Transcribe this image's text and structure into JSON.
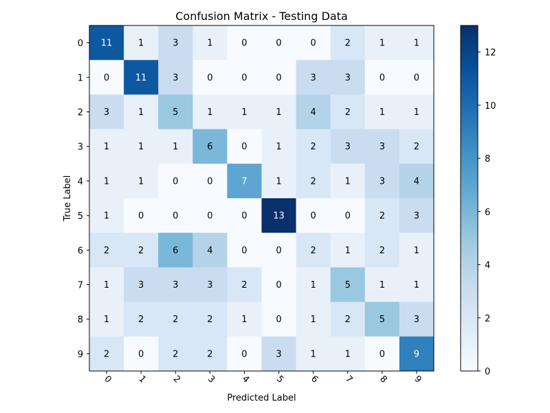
{
  "chart_data": {
    "type": "heatmap",
    "title": "Confusion Matrix - Testing Data",
    "xlabel": "Predicted Label",
    "ylabel": "True Label",
    "x_categories": [
      "0",
      "1",
      "2",
      "3",
      "4",
      "5",
      "6",
      "7",
      "8",
      "9"
    ],
    "y_categories": [
      "0",
      "1",
      "2",
      "3",
      "4",
      "5",
      "6",
      "7",
      "8",
      "9"
    ],
    "values": [
      [
        11,
        1,
        3,
        1,
        0,
        0,
        0,
        2,
        1,
        1
      ],
      [
        0,
        11,
        3,
        0,
        0,
        0,
        3,
        3,
        0,
        0
      ],
      [
        3,
        1,
        5,
        1,
        1,
        1,
        4,
        2,
        1,
        1
      ],
      [
        1,
        1,
        1,
        6,
        0,
        1,
        2,
        3,
        3,
        2
      ],
      [
        1,
        1,
        0,
        0,
        7,
        1,
        2,
        1,
        3,
        4
      ],
      [
        1,
        0,
        0,
        0,
        0,
        13,
        0,
        0,
        2,
        3
      ],
      [
        2,
        2,
        6,
        4,
        0,
        0,
        2,
        1,
        2,
        1
      ],
      [
        1,
        3,
        3,
        3,
        2,
        0,
        1,
        5,
        1,
        1
      ],
      [
        1,
        2,
        2,
        2,
        1,
        0,
        1,
        2,
        5,
        3
      ],
      [
        2,
        0,
        2,
        2,
        0,
        3,
        1,
        1,
        0,
        9
      ]
    ],
    "colormap": "Blues",
    "colorbar": {
      "range": [
        0,
        13
      ],
      "ticks": [
        "0",
        "2",
        "4",
        "6",
        "8",
        "10",
        "12"
      ]
    }
  }
}
